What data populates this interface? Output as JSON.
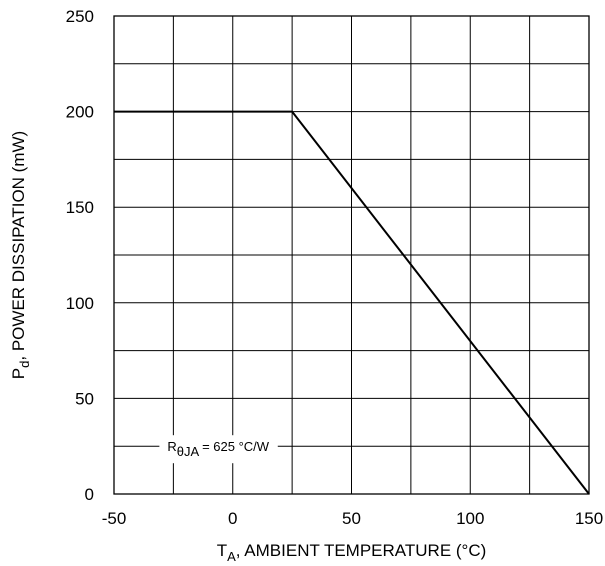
{
  "chart_data": {
    "type": "line",
    "xlabel_main": "T",
    "xlabel_sub": "A",
    "xlabel_rest": ", AMBIENT TEMPERATURE (°C)",
    "ylabel_main": "P",
    "ylabel_sub": "d",
    "ylabel_rest": ", POWER DISSIPATION (mW)",
    "xlim": [
      -50,
      150
    ],
    "ylim": [
      0,
      250
    ],
    "x_ticks": [
      -50,
      -25,
      0,
      25,
      50,
      75,
      100,
      125,
      150
    ],
    "x_tick_labels": [
      "-50",
      "0",
      "50",
      "100",
      "150"
    ],
    "x_tick_label_values": [
      -50,
      0,
      50,
      100,
      150
    ],
    "y_ticks": [
      0,
      25,
      50,
      75,
      100,
      125,
      150,
      175,
      200,
      225,
      250
    ],
    "y_tick_labels": [
      "0",
      "50",
      "100",
      "150",
      "200",
      "250"
    ],
    "y_tick_label_values": [
      0,
      50,
      100,
      150,
      200,
      250
    ],
    "grid": true,
    "series": [
      {
        "x": [
          -50,
          25,
          150
        ],
        "y": [
          200,
          200,
          0
        ],
        "color": "#000000"
      }
    ],
    "annotation": {
      "main": "R",
      "sub": "θJA",
      "rest": " = 625 °C/W",
      "x": -25,
      "y": 25
    }
  }
}
